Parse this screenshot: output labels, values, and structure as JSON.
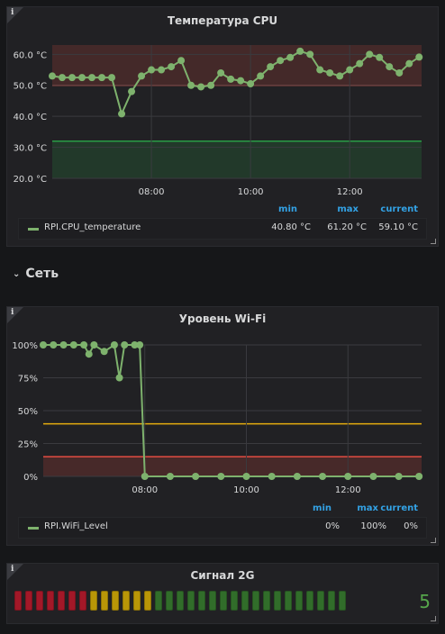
{
  "cpu_panel": {
    "title": "Температура CPU",
    "y_ticks": [
      "60.0 °C",
      "50.0 °C",
      "40.0 °C",
      "30.0 °C",
      "20.0 °C"
    ],
    "x_ticks": [
      "08:00",
      "10:00",
      "12:00"
    ],
    "legend": {
      "headers": {
        "min": "min",
        "max": "max",
        "current": "current"
      },
      "series_name": "RPI.CPU_temperature",
      "min": "40.80 °C",
      "max": "61.20 °C",
      "current": "59.10 °C"
    }
  },
  "row": {
    "title": "Сеть"
  },
  "wifi_panel": {
    "title": "Уровень Wi-Fi",
    "y_ticks": [
      "100%",
      "75%",
      "50%",
      "25%",
      "0%"
    ],
    "x_ticks": [
      "08:00",
      "10:00",
      "12:00"
    ],
    "legend": {
      "headers": {
        "min": "min",
        "max": "max",
        "current": "current"
      },
      "series_name": "RPI.WiFi_Level",
      "min": "0%",
      "max": "100%",
      "current": "0%"
    }
  },
  "signal_panel": {
    "title": "Сигнал 2G",
    "value": "5",
    "level": 5,
    "segments": 31,
    "colors": {
      "red": "#c4162a",
      "yellow": "#e0b400",
      "green": "#37872d"
    }
  },
  "colors": {
    "series": "#7eb26d",
    "threshold_red": "#e24d42",
    "threshold_orange": "#e5ac0e",
    "threshold_green": "#299c46"
  },
  "chart_data": [
    {
      "type": "line",
      "title": "Температура CPU",
      "series": [
        {
          "name": "RPI.CPU_temperature",
          "x": [
            6.0,
            6.2,
            6.4,
            6.6,
            6.8,
            7.0,
            7.2,
            7.4,
            7.6,
            7.8,
            8.0,
            8.2,
            8.4,
            8.6,
            8.8,
            9.0,
            9.2,
            9.4,
            9.6,
            9.8,
            10.0,
            10.2,
            10.4,
            10.6,
            10.8,
            11.0,
            11.2,
            11.4,
            11.6,
            11.8,
            12.0,
            12.2,
            12.4,
            12.6,
            12.8,
            13.0,
            13.2,
            13.4
          ],
          "y": [
            53,
            52.5,
            52.5,
            52.5,
            52.5,
            52.5,
            52.5,
            40.8,
            48,
            53,
            55,
            55,
            56,
            58,
            50,
            49.5,
            50,
            54,
            52,
            51.5,
            50.5,
            53,
            56,
            58,
            59,
            61,
            60,
            55,
            54,
            53,
            55,
            57,
            60,
            59,
            56,
            54,
            57,
            59.1
          ]
        }
      ],
      "ylim": [
        20,
        63
      ],
      "x_tick_labels": [
        "08:00",
        "10:00",
        "12:00"
      ],
      "thresholds": [
        {
          "value": 50,
          "color": "red",
          "fill": "above"
        },
        {
          "value": 32,
          "color": "green",
          "fill": "below"
        }
      ]
    },
    {
      "type": "line",
      "title": "Уровень Wi-Fi",
      "series": [
        {
          "name": "RPI.WiFi_Level",
          "x": [
            6.0,
            6.2,
            6.4,
            6.6,
            6.8,
            6.9,
            7.0,
            7.2,
            7.4,
            7.5,
            7.6,
            7.8,
            7.9,
            8.0,
            8.5,
            9.0,
            9.5,
            10.0,
            10.5,
            11.0,
            11.5,
            12.0,
            12.5,
            13.0,
            13.4
          ],
          "y": [
            100,
            100,
            100,
            100,
            100,
            93,
            100,
            95,
            100,
            75,
            100,
            100,
            100,
            0,
            0,
            0,
            0,
            0,
            0,
            0,
            0,
            0,
            0,
            0,
            0
          ]
        }
      ],
      "ylim": [
        0,
        100
      ],
      "x_tick_labels": [
        "08:00",
        "10:00",
        "12:00"
      ],
      "thresholds": [
        {
          "value": 40,
          "color": "orange"
        },
        {
          "value": 15,
          "color": "red",
          "fill": "below"
        }
      ]
    }
  ]
}
